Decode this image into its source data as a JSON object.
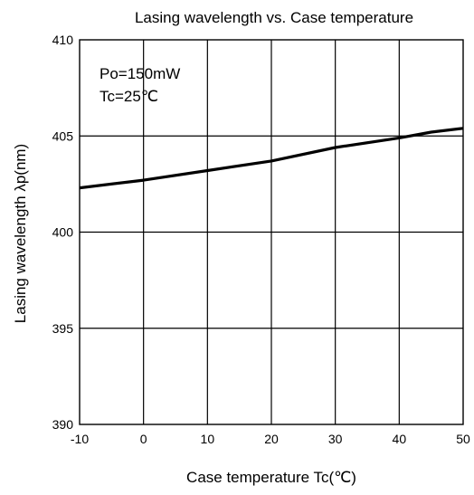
{
  "chart_data": {
    "type": "line",
    "title": "Lasing wavelength vs. Case temperature",
    "xlabel": "Case temperature Tc(℃)",
    "ylabel": "Lasing wavelength λp(nm)",
    "xlim": [
      -10,
      50
    ],
    "ylim": [
      390,
      410
    ],
    "x_ticks": [
      -10,
      0,
      10,
      20,
      30,
      40,
      50
    ],
    "y_ticks": [
      390,
      395,
      400,
      405,
      410
    ],
    "x_tick_labels": [
      "-10",
      "0",
      "10",
      "20",
      "30",
      "40",
      "50"
    ],
    "y_tick_labels": [
      "390",
      "395",
      "400",
      "405",
      "410"
    ],
    "grid": true,
    "annotations": [
      "Po=150mW",
      "Tc=25℃"
    ],
    "series": [
      {
        "x": [
          -10,
          0,
          10,
          20,
          30,
          40,
          45,
          50
        ],
        "y": [
          402.3,
          402.7,
          403.2,
          403.7,
          404.4,
          404.9,
          405.2,
          405.4
        ]
      }
    ]
  }
}
